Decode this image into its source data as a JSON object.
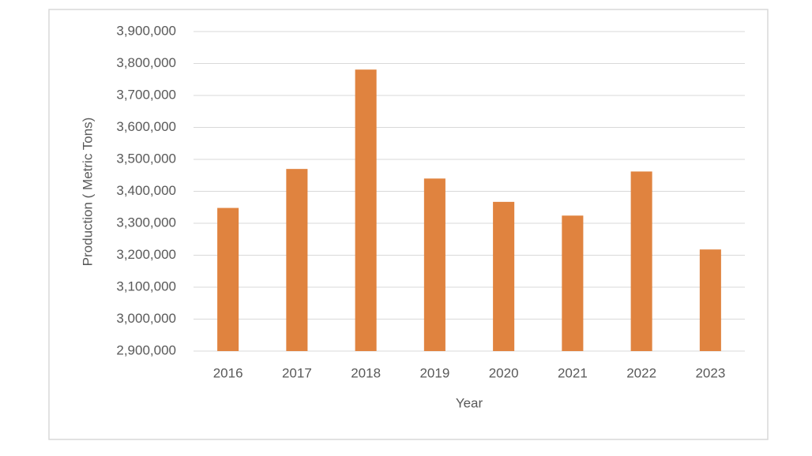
{
  "chart_data": {
    "type": "bar",
    "x_label": "Year",
    "y_label": "Production ( Metric Tons)",
    "categories": [
      "2016",
      "2017",
      "2018",
      "2019",
      "2020",
      "2021",
      "2022",
      "2023"
    ],
    "values": [
      3348000,
      3470000,
      3781000,
      3440000,
      3367000,
      3324000,
      3462000,
      3218000
    ],
    "color": "#e0833f",
    "ylim": [
      2900000,
      3900000
    ],
    "yticks": [
      {
        "value": 2900000,
        "label": "2,900,000"
      },
      {
        "value": 3000000,
        "label": "3,000,000"
      },
      {
        "value": 3100000,
        "label": "3,100,000"
      },
      {
        "value": 3200000,
        "label": "3,200,000"
      },
      {
        "value": 3300000,
        "label": "3,300,000"
      },
      {
        "value": 3400000,
        "label": "3,400,000"
      },
      {
        "value": 3500000,
        "label": "3,500,000"
      },
      {
        "value": 3600000,
        "label": "3,600,000"
      },
      {
        "value": 3700000,
        "label": "3,700,000"
      },
      {
        "value": 3800000,
        "label": "3,800,000"
      },
      {
        "value": 3900000,
        "label": "3,900,000"
      }
    ],
    "grid": true
  }
}
